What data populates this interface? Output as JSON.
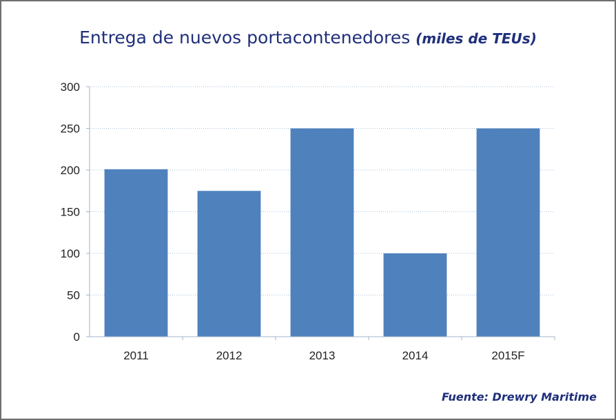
{
  "chart_data": {
    "type": "bar",
    "title": "Entrega de nuevos portacontenedores",
    "subtitle": "(miles de TEUs)",
    "categories": [
      "2011",
      "2012",
      "2013",
      "2014",
      "2015F"
    ],
    "values": [
      201,
      175,
      250,
      100,
      250
    ],
    "xlabel": "",
    "ylabel": "",
    "ylim": [
      0,
      300
    ],
    "yticks": [
      0,
      50,
      100,
      150,
      200,
      250,
      300
    ],
    "grid": true,
    "bar_color": "#4f81bd",
    "source": "Fuente: Drewry Maritime"
  }
}
